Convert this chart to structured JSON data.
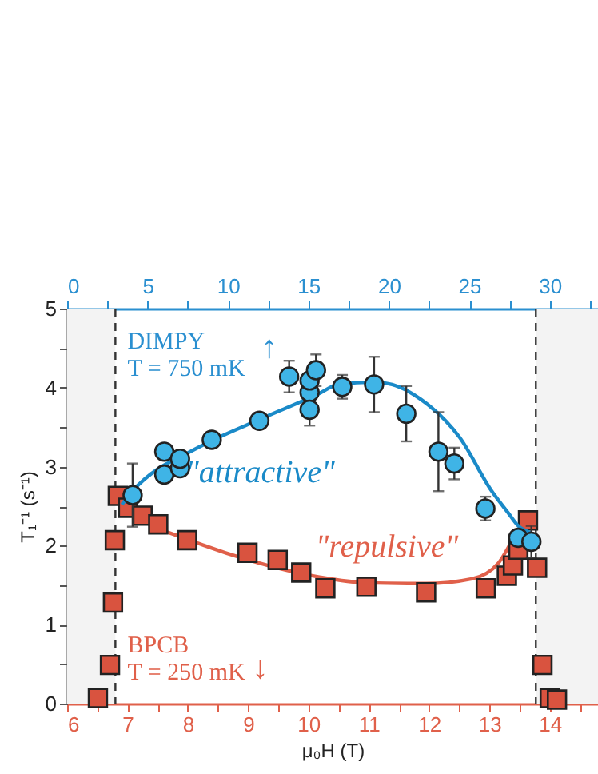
{
  "chart_data": {
    "type": "scatter",
    "xlabel": "μ₀H (T)",
    "ylabel": "T₁⁻¹ (s⁻¹)",
    "xlim": [
      6,
      14.8
    ],
    "xticks": [
      6,
      {
        "value": 6.5,
        "label": null
      },
      7,
      {
        "value": 7.5,
        "label": null
      },
      8,
      {
        "value": 8.5,
        "label": null
      },
      9,
      {
        "value": 9.5,
        "label": null
      },
      10,
      {
        "value": 10.5,
        "label": null
      },
      11,
      {
        "value": 11.5,
        "label": null
      },
      12,
      {
        "value": 12.5,
        "label": null
      },
      13,
      {
        "value": 13.5,
        "label": null
      },
      14,
      {
        "value": 14.5,
        "label": null
      }
    ],
    "x2lim": [
      0,
      33
    ],
    "x2ticks": [
      0,
      {
        "value": 2.5,
        "label": null
      },
      5,
      {
        "value": 7.5,
        "label": null
      },
      10,
      {
        "value": 12.5,
        "label": null
      },
      15,
      {
        "value": 17.5,
        "label": null
      },
      20,
      {
        "value": 22.5,
        "label": null
      },
      25,
      {
        "value": 27.5,
        "label": null
      },
      30,
      {
        "value": 32.5,
        "label": null
      }
    ],
    "ylim": [
      0,
      5
    ],
    "yticks": [
      0,
      {
        "value": 0.5,
        "label": null
      },
      1,
      {
        "value": 1.5,
        "label": null
      },
      2,
      {
        "value": 2.5,
        "label": null
      },
      3,
      {
        "value": 3.5,
        "label": null
      },
      4,
      {
        "value": 4.5,
        "label": null
      },
      5
    ],
    "grid": false,
    "series": [
      {
        "type": "line",
        "axis": "x2",
        "color": "#1a8ac8",
        "line_style": "solid",
        "x": [
          3.4,
          4.1,
          5.7,
          7.0,
          9.0,
          12.0,
          15.6,
          16.85,
          19.1,
          20.2,
          22.0,
          24.4,
          26.4,
          27.4,
          28.0,
          28.9
        ],
        "values": [
          2.52,
          2.7,
          2.98,
          3.12,
          3.33,
          3.6,
          3.92,
          4.04,
          4.07,
          4.04,
          3.85,
          3.37,
          2.69,
          2.42,
          2.26,
          2.16
        ]
      },
      {
        "axis": "x2",
        "color": "#3fb4e6",
        "marker": "circle",
        "x": [
          4.07,
          6.04,
          6.04,
          7.02,
          7.02,
          8.99,
          11.95,
          13.8,
          15.07,
          15.07,
          15.07,
          15.47,
          17.1,
          19.08,
          21.08,
          23.08,
          24.07,
          26.0,
          28.04,
          28.86
        ],
        "values": [
          2.64,
          3.19,
          2.9,
          2.98,
          3.1,
          3.34,
          3.58,
          4.14,
          3.94,
          4.09,
          3.72,
          4.22,
          4.01,
          4.04,
          3.67,
          3.19,
          3.04,
          2.47,
          2.1,
          2.05
        ],
        "errors": [
          0.4,
          null,
          null,
          null,
          null,
          null,
          null,
          0.2,
          null,
          null,
          0.2,
          0.2,
          0.15,
          0.35,
          0.35,
          0.5,
          0.2,
          0.15,
          null,
          0.2
        ]
      },
      {
        "type": "line",
        "color": "#e0604a",
        "line_style": "solid",
        "x": [
          6.88,
          7.3,
          8.0,
          9.0,
          10.2,
          10.96,
          11.95,
          12.71,
          13.15,
          13.41,
          13.67
        ],
        "values": [
          2.53,
          2.3,
          2.08,
          1.82,
          1.6,
          1.53,
          1.52,
          1.58,
          1.78,
          2.09,
          2.26
        ]
      },
      {
        "color": "#d9533f",
        "marker": "square",
        "x": [
          6.51,
          6.71,
          6.76,
          6.79,
          6.84,
          7.01,
          7.25,
          7.51,
          7.99,
          8.99,
          9.49,
          9.88,
          10.28,
          10.96,
          11.95,
          12.94,
          13.29,
          13.39,
          13.48,
          13.64,
          13.79,
          13.88,
          14.0,
          14.12
        ],
        "values": [
          0.07,
          0.49,
          1.28,
          2.07,
          2.63,
          2.48,
          2.38,
          2.27,
          2.07,
          1.91,
          1.82,
          1.66,
          1.46,
          1.48,
          1.41,
          1.46,
          1.62,
          1.75,
          1.95,
          2.32,
          1.72,
          0.49,
          0.07,
          0.05
        ]
      }
    ],
    "bands": [
      {
        "axis": "x",
        "from": 6,
        "to": 6.8,
        "color": "#f3f3f3"
      },
      {
        "axis": "x",
        "from": 13.77,
        "to": 14.8,
        "color": "#f3f3f3"
      }
    ],
    "ref_lines": [
      {
        "axis": "x",
        "value": 6.8,
        "color": "#333333",
        "line_style": "dashed"
      },
      {
        "axis": "x",
        "value": 13.77,
        "color": "#333333",
        "line_style": "dashed"
      }
    ],
    "annotations": [
      "DIMPY",
      "T = 750 mK",
      "↑",
      "\"attractive\"",
      "\"repulsive\"",
      "BPCB",
      "T = 250 mK",
      "↓"
    ]
  }
}
